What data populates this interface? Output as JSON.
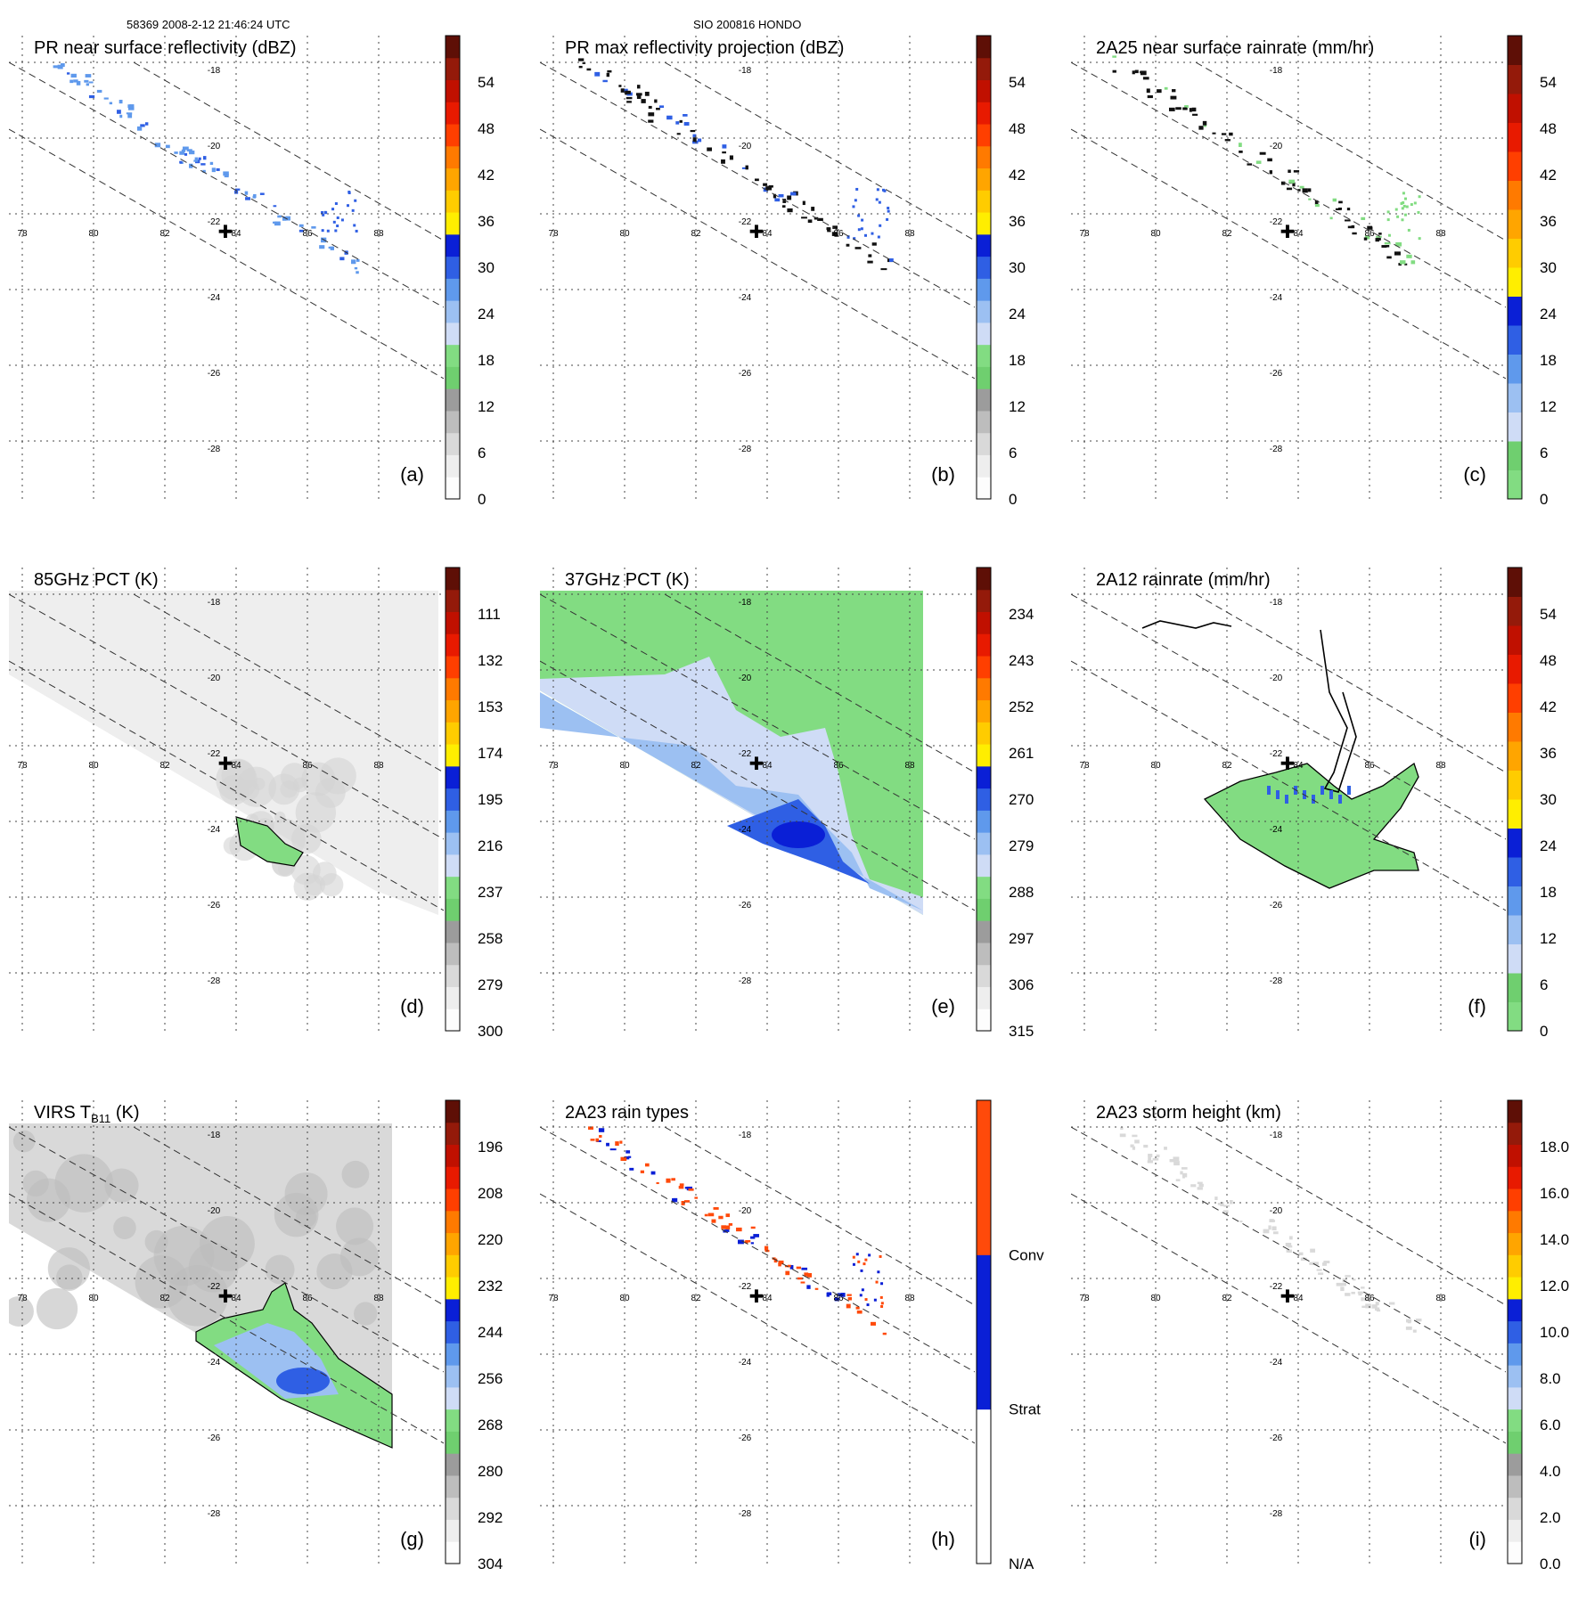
{
  "header": {
    "left": "58369 2008-2-12 21:46:24 UTC",
    "center": "SIO 200816 HONDO"
  },
  "map_ticks": {
    "lon": [
      "78",
      "80",
      "82",
      "84",
      "86",
      "88"
    ],
    "lat": [
      "-18",
      "-20",
      "-22",
      "-24",
      "-26",
      "-28"
    ]
  },
  "palettes": {
    "dbz": [
      "#fdfdfd",
      "#eeeeee",
      "#d9d9d9",
      "#bdbdbd",
      "#9c9c9c",
      "#6fcf6f",
      "#82dc82",
      "#cfdcf6",
      "#9cc0f2",
      "#5f99ec",
      "#2f5fe4",
      "#0a1fd6",
      "#ffee00",
      "#ffcc00",
      "#ffa500",
      "#ff7a00",
      "#ff3f00",
      "#e81a00",
      "#c01000",
      "#941a0a",
      "#5e0f06"
    ],
    "rain": [
      "#82dc82",
      "#6fcf6f",
      "#cfdcf6",
      "#9cc0f2",
      "#5f99ec",
      "#2f5fe4",
      "#0a1fd6",
      "#ffee00",
      "#ffcc00",
      "#ffa500",
      "#ff7a00",
      "#ff3f00",
      "#e81a00",
      "#c01000",
      "#941a0a",
      "#5e0f06"
    ],
    "pct": [
      "#fdfdfd",
      "#eeeeee",
      "#d9d9d9",
      "#bdbdbd",
      "#9c9c9c",
      "#6fcf6f",
      "#82dc82",
      "#cfdcf6",
      "#9cc0f2",
      "#5f99ec",
      "#2f5fe4",
      "#0a1fd6",
      "#ffee00",
      "#ffcc00",
      "#ffa500",
      "#ff7a00",
      "#ff3f00",
      "#e81a00",
      "#c01000",
      "#941a0a",
      "#5e0f06"
    ],
    "virs": [
      "#fdfdfd",
      "#eeeeee",
      "#d9d9d9",
      "#bdbdbd",
      "#9c9c9c",
      "#6fcf6f",
      "#82dc82",
      "#cfdcf6",
      "#9cc0f2",
      "#5f99ec",
      "#2f5fe4",
      "#0a1fd6",
      "#ffee00",
      "#ffcc00",
      "#ffa500",
      "#ff7a00",
      "#ff3f00",
      "#e81a00",
      "#c01000",
      "#941a0a",
      "#5e0f06"
    ],
    "height": [
      "#fdfdfd",
      "#eeeeee",
      "#d9d9d9",
      "#bdbdbd",
      "#9c9c9c",
      "#6fcf6f",
      "#82dc82",
      "#cfdcf6",
      "#9cc0f2",
      "#5f99ec",
      "#2f5fe4",
      "#0a1fd6",
      "#ffee00",
      "#ffcc00",
      "#ffa500",
      "#ff7a00",
      "#ff3f00",
      "#e81a00",
      "#c01000",
      "#941a0a",
      "#5e0f06"
    ],
    "types": [
      "#ffffff",
      "#0a1fd6",
      "#ff4a0a"
    ]
  },
  "panels": [
    {
      "id": "a",
      "title": "PR near surface reflectivity (dBZ)",
      "letter": "(a)",
      "palette": "dbz",
      "ticks": [
        "0",
        "6",
        "12",
        "18",
        "24",
        "30",
        "36",
        "42",
        "48",
        "54"
      ],
      "bg": "none",
      "echo": "pr",
      "echo_color": "#5f99ec",
      "echo_color2": "#2f5fe4"
    },
    {
      "id": "b",
      "title": "PR max reflectivity projection (dBZ)",
      "letter": "(b)",
      "palette": "dbz",
      "ticks": [
        "0",
        "6",
        "12",
        "18",
        "24",
        "30",
        "36",
        "42",
        "48",
        "54"
      ],
      "bg": "none",
      "echo": "pr",
      "echo_color": "#111111",
      "echo_color2": "#2f5fe4"
    },
    {
      "id": "c",
      "title": "2A25 near surface rainrate (mm/hr)",
      "letter": "(c)",
      "palette": "rain",
      "ticks": [
        "0",
        "6",
        "12",
        "18",
        "24",
        "30",
        "36",
        "42",
        "48",
        "54"
      ],
      "bg": "none",
      "echo": "pr",
      "echo_color": "#111111",
      "echo_color2": "#82dc82"
    },
    {
      "id": "d",
      "title": "85GHz PCT (K)",
      "letter": "(d)",
      "palette": "pct",
      "ticks": [
        "300",
        "279",
        "258",
        "237",
        "216",
        "195",
        "174",
        "153",
        "132",
        "111"
      ],
      "bg": "swath-gray",
      "echo": "none"
    },
    {
      "id": "e",
      "title": "37GHz PCT (K)",
      "letter": "(e)",
      "palette": "pct",
      "ticks": [
        "315",
        "306",
        "297",
        "288",
        "279",
        "270",
        "261",
        "252",
        "243",
        "234"
      ],
      "bg": "swath-green",
      "echo": "none"
    },
    {
      "id": "f",
      "title": "2A12 rainrate (mm/hr)",
      "letter": "(f)",
      "palette": "rain",
      "ticks": [
        "0",
        "6",
        "12",
        "18",
        "24",
        "30",
        "36",
        "42",
        "48",
        "54"
      ],
      "bg": "rain-green",
      "echo": "none"
    },
    {
      "id": "g",
      "title_main": "VIRS T",
      "title_sub": "B11",
      "title_end": " (K)",
      "letter": "(g)",
      "palette": "virs",
      "ticks": [
        "304",
        "292",
        "280",
        "268",
        "256",
        "244",
        "232",
        "220",
        "208",
        "196"
      ],
      "bg": "swath-virs",
      "echo": "none"
    },
    {
      "id": "h",
      "title": "2A23 rain types",
      "letter": "(h)",
      "palette": "types",
      "ticks": [
        "N/A",
        "Strat",
        "Conv"
      ],
      "bg": "none",
      "echo": "types"
    },
    {
      "id": "i",
      "title": "2A23 storm height (km)",
      "letter": "(i)",
      "palette": "height",
      "ticks": [
        "0.0",
        "2.0",
        "4.0",
        "6.0",
        "8.0",
        "10.0",
        "12.0",
        "14.0",
        "16.0",
        "18.0"
      ],
      "bg": "none",
      "echo": "height"
    }
  ]
}
